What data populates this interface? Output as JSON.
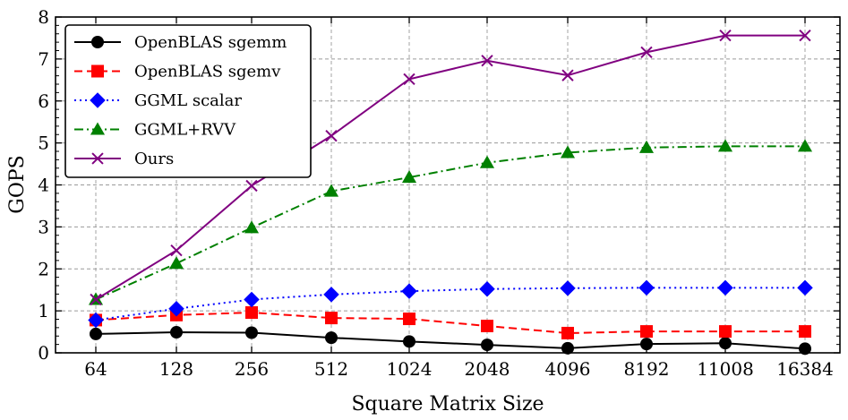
{
  "chart_data": {
    "type": "line",
    "title": "",
    "xlabel": "Square Matrix Size",
    "ylabel": "GOPS",
    "categories": [
      "64",
      "128",
      "256",
      "512",
      "1024",
      "2048",
      "4096",
      "8192",
      "11008",
      "16384"
    ],
    "ylim": [
      0,
      8
    ],
    "yticks": [
      "0",
      "1",
      "2",
      "3",
      "4",
      "5",
      "6",
      "7",
      "8"
    ],
    "grid": true,
    "legend_position": "top-left",
    "series": [
      {
        "name": "OpenBLAS sgemm",
        "color": "#000000",
        "marker": "circle",
        "dash": "solid",
        "values": [
          0.45,
          0.49,
          0.48,
          0.36,
          0.27,
          0.19,
          0.11,
          0.21,
          0.23,
          0.1
        ]
      },
      {
        "name": "OpenBLAS sgemv",
        "color": "#ff0000",
        "marker": "square",
        "dash": "dashed",
        "values": [
          0.78,
          0.9,
          0.96,
          0.83,
          0.81,
          0.64,
          0.47,
          0.51,
          0.51,
          0.51
        ]
      },
      {
        "name": "GGML scalar",
        "color": "#0000ff",
        "marker": "diamond",
        "dash": "dotted",
        "values": [
          0.78,
          1.05,
          1.27,
          1.39,
          1.47,
          1.52,
          1.54,
          1.55,
          1.55,
          1.55
        ]
      },
      {
        "name": "GGML+RVV",
        "color": "#008000",
        "marker": "triangle",
        "dash": "dashdot",
        "values": [
          1.27,
          2.13,
          2.98,
          3.85,
          4.18,
          4.53,
          4.77,
          4.89,
          4.92,
          4.92
        ]
      },
      {
        "name": "Ours",
        "color": "#800080",
        "marker": "x",
        "dash": "solid",
        "values": [
          1.27,
          2.44,
          3.98,
          5.17,
          6.52,
          6.96,
          6.61,
          7.16,
          7.56,
          7.56
        ]
      }
    ]
  }
}
